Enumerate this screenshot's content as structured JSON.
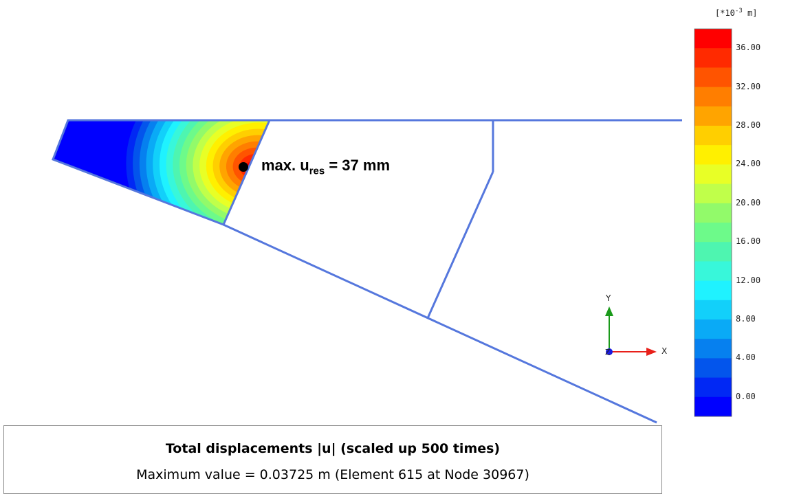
{
  "legend": {
    "units_prefix": "[*10",
    "units_exp": "-3",
    "units_suffix": " m]",
    "ticks": [
      "36.00",
      "32.00",
      "28.00",
      "24.00",
      "20.00",
      "16.00",
      "12.00",
      "8.00",
      "4.00",
      "0.00"
    ],
    "colors": [
      "#ff0000",
      "#ff2a00",
      "#ff5400",
      "#ff7e00",
      "#ffa400",
      "#ffcf00",
      "#fff000",
      "#e8ff26",
      "#c0ff4a",
      "#92fa6a",
      "#6dfa8a",
      "#4ef5b0",
      "#38f7da",
      "#1ff2ff",
      "#12d0fa",
      "#0aaaf6",
      "#0680ef",
      "#0355ec",
      "#0128f4",
      "#0000ff"
    ]
  },
  "annotation": {
    "label_main": "max. u",
    "label_sub": "res",
    "label_tail": " = 37 mm"
  },
  "info": {
    "title": "Total displacements |u| (scaled up 500 times)",
    "subtitle": "Maximum value = 0.03725 m (Element 615 at Node 30967)"
  },
  "axes": {
    "x_label": "X",
    "y_label": "Y",
    "z_label": "Z",
    "x_color": "#e8201a",
    "y_color": "#1a9a1a",
    "z_color": "#1a1ae0"
  },
  "geometry_color": "#5577dd"
}
